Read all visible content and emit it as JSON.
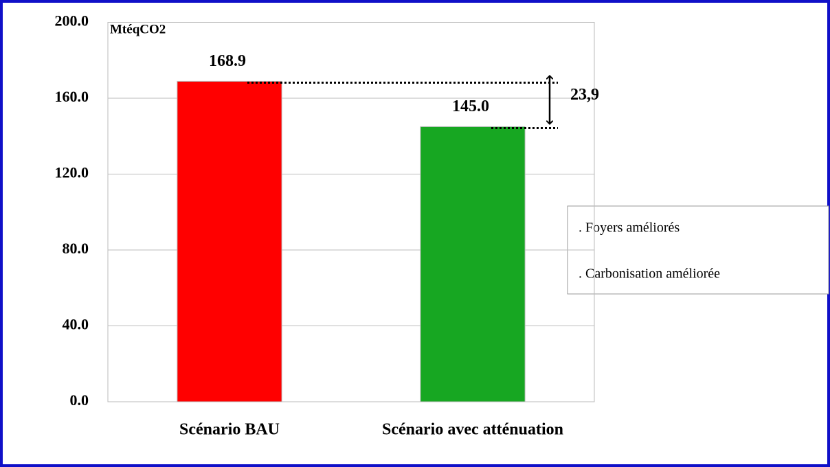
{
  "chart_data": {
    "type": "bar",
    "y_label": "MtéqCO2",
    "categories": [
      "Scénario BAU",
      "Scénario avec atténuation"
    ],
    "values": [
      168.9,
      145.0
    ],
    "value_labels": [
      "168.9",
      "145.0"
    ],
    "colors": [
      "#ff0000",
      "#17a722"
    ],
    "ylim": [
      0,
      200
    ],
    "yticks": [
      {
        "value": 0,
        "label": "0.0"
      },
      {
        "value": 40,
        "label": "40.0"
      },
      {
        "value": 80,
        "label": "80.0"
      },
      {
        "value": 120,
        "label": "120.0"
      },
      {
        "value": 160,
        "label": "160.0"
      },
      {
        "value": 200,
        "label": "200.0"
      }
    ],
    "grid": true,
    "annotations": {
      "difference": "23,9"
    },
    "text_box": [
      ". Foyers améliorés",
      ". Carbonisation améliorée"
    ]
  }
}
